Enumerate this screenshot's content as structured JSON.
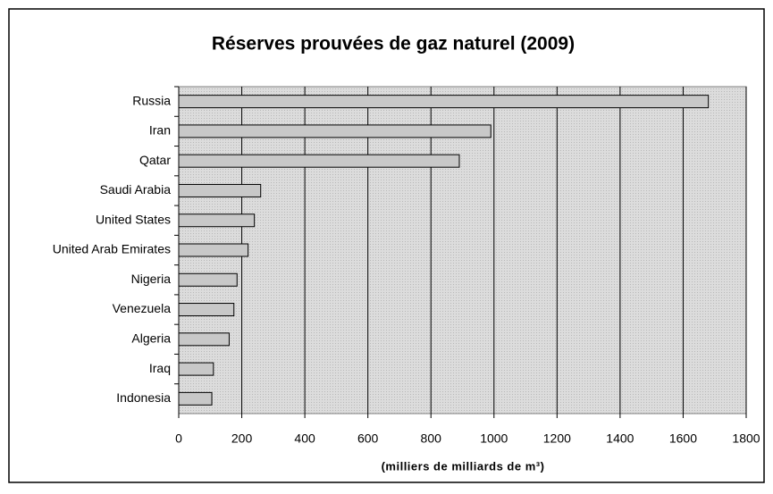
{
  "chart_data": {
    "type": "bar",
    "orientation": "horizontal",
    "title": "Réserves prouvées de gaz naturel (2009)",
    "x_label": "(milliers de milliards de m³)",
    "categories": [
      "Russia",
      "Iran",
      "Qatar",
      "Saudi Arabia",
      "United States",
      "United Arab Emirates",
      "Nigeria",
      "Venezuela",
      "Algeria",
      "Iraq",
      "Indonesia"
    ],
    "values": [
      1680,
      990,
      890,
      260,
      240,
      220,
      185,
      175,
      160,
      110,
      105
    ],
    "color": "#c8c8c8",
    "xlim": [
      0,
      1800
    ],
    "xticks": [
      0,
      200,
      400,
      600,
      800,
      1000,
      1200,
      1400,
      1600,
      1800
    ],
    "grid": true
  }
}
